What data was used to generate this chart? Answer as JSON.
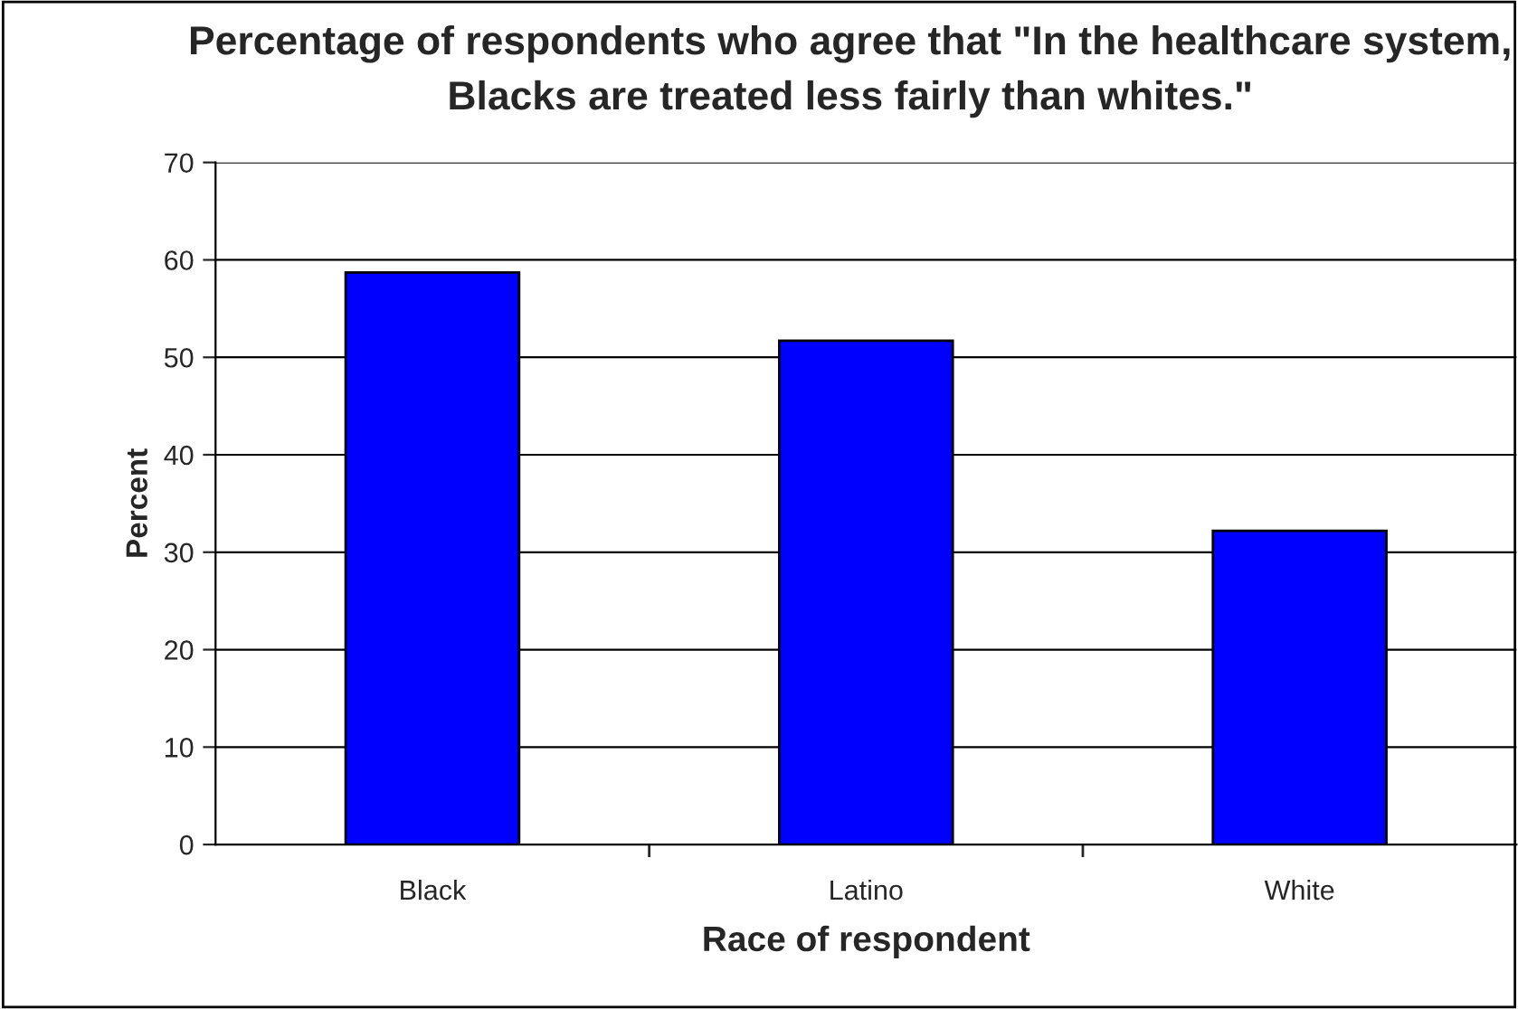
{
  "chart_data": {
    "type": "bar",
    "title": "Percentage of respondents who agree that \"In the healthcare system, Blacks are treated less fairly than whites.\"",
    "xlabel": "Race of respondent",
    "ylabel": "Percent",
    "categories": [
      "Black",
      "Latino",
      "White"
    ],
    "values": [
      58.7,
      51.7,
      32.2
    ],
    "color": "#0000ff",
    "ylim": [
      0,
      70
    ],
    "yticks": [
      0,
      10,
      20,
      30,
      40,
      50,
      60,
      70
    ],
    "grid": "y"
  }
}
